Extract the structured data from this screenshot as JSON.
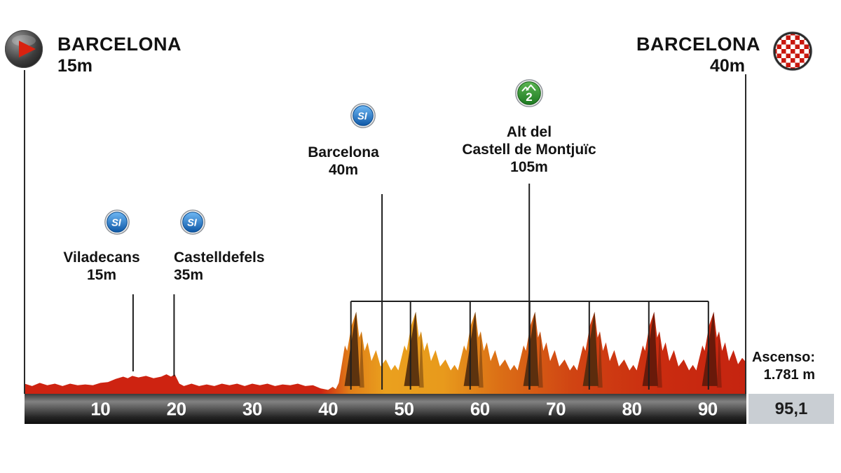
{
  "header": {
    "start": {
      "name": "BARCELONA",
      "altitude": "15m"
    },
    "finish": {
      "name": "BARCELONA",
      "altitude": "40m"
    }
  },
  "waypoints": [
    {
      "type": "sprint",
      "icon": "SI",
      "name": "Viladecans",
      "altitude": "15m",
      "km": 14.3
    },
    {
      "type": "sprint",
      "icon": "SI",
      "name": "Castelldefels",
      "altitude": "35m",
      "km": 19.7
    },
    {
      "type": "sprint",
      "icon": "SI",
      "name": "Barcelona",
      "altitude": "40m",
      "km": 47.1
    },
    {
      "type": "climb",
      "icon": "2",
      "name_lines": [
        "Alt del",
        "Castell de Montjuïc"
      ],
      "altitude": "105m",
      "km": 66.5
    }
  ],
  "footer": {
    "ascent_label": "Ascenso:",
    "ascent_value": "1.781 m",
    "total_distance": "95,1"
  },
  "axis": {
    "ticks": [
      10,
      20,
      30,
      40,
      50,
      60,
      70,
      80,
      90
    ]
  },
  "chart_data": {
    "type": "area",
    "total_km": 95.1,
    "start_elevation_m": 15,
    "finish_elevation_m": 40,
    "max_elevation_m": 105,
    "ascent_total_m": 1781,
    "x_ticks": [
      10,
      20,
      30,
      40,
      50,
      60,
      70,
      80,
      90
    ],
    "peaks_km": [
      43.7,
      51.55,
      59.4,
      67.25,
      75.1,
      82.95,
      90.8
    ],
    "circuit_lap_lines_km": [
      43,
      50.85,
      58.7,
      66.55,
      74.4,
      82.25,
      90.1
    ],
    "gradient_stops": [
      [
        0,
        "#ce2311"
      ],
      [
        0.41,
        "#ce2311"
      ],
      [
        0.45,
        "#e07d18"
      ],
      [
        0.5,
        "#eaa01e"
      ],
      [
        0.58,
        "#e89a1c"
      ],
      [
        0.66,
        "#db6e16"
      ],
      [
        0.76,
        "#d04413"
      ],
      [
        0.88,
        "#ca2c10"
      ],
      [
        1,
        "#c52410"
      ]
    ],
    "colors": {
      "peak_dark": "#4f2a0d",
      "peak_maroon": "#5e180a",
      "bracket": "#1e1e1e",
      "marker_line": "#2a2a2a"
    },
    "profile": [
      [
        0,
        13
      ],
      [
        1,
        10
      ],
      [
        2,
        14
      ],
      [
        3,
        11
      ],
      [
        4,
        13
      ],
      [
        5,
        10
      ],
      [
        6,
        13
      ],
      [
        7,
        11
      ],
      [
        8,
        12
      ],
      [
        9,
        11
      ],
      [
        10,
        14
      ],
      [
        11,
        15
      ],
      [
        12,
        19
      ],
      [
        13,
        22
      ],
      [
        13.6,
        20
      ],
      [
        14.2,
        23
      ],
      [
        15,
        21
      ],
      [
        16,
        23
      ],
      [
        17,
        20
      ],
      [
        18,
        22
      ],
      [
        18.7,
        25
      ],
      [
        19.3,
        22
      ],
      [
        19.8,
        25
      ],
      [
        20.4,
        13
      ],
      [
        21,
        10
      ],
      [
        22,
        13
      ],
      [
        23,
        10
      ],
      [
        24,
        12
      ],
      [
        25,
        10
      ],
      [
        26,
        13
      ],
      [
        27,
        11
      ],
      [
        28,
        13
      ],
      [
        29,
        10
      ],
      [
        30,
        13
      ],
      [
        31,
        11
      ],
      [
        32,
        13
      ],
      [
        33,
        10
      ],
      [
        34,
        12
      ],
      [
        35,
        11
      ],
      [
        36,
        13
      ],
      [
        37,
        10
      ],
      [
        38,
        11
      ],
      [
        39,
        7
      ],
      [
        40,
        5
      ],
      [
        40.6,
        9
      ],
      [
        41,
        6
      ],
      [
        41.4,
        14
      ],
      [
        42.2,
        62
      ],
      [
        42.5,
        55
      ],
      [
        43.1,
        88
      ],
      [
        43.7,
        105
      ],
      [
        44.1,
        72
      ],
      [
        44.4,
        80
      ],
      [
        44.8,
        55
      ],
      [
        45.2,
        66
      ],
      [
        45.7,
        42
      ],
      [
        46.3,
        56
      ],
      [
        46.9,
        35
      ],
      [
        47.6,
        44
      ],
      [
        48.3,
        30
      ],
      [
        48.8,
        37
      ],
      [
        49.25,
        30
      ],
      [
        50.05,
        62
      ],
      [
        50.35,
        55
      ],
      [
        50.95,
        88
      ],
      [
        51.55,
        105
      ],
      [
        51.95,
        72
      ],
      [
        52.25,
        80
      ],
      [
        52.65,
        55
      ],
      [
        53.05,
        66
      ],
      [
        53.55,
        42
      ],
      [
        54.15,
        56
      ],
      [
        54.75,
        35
      ],
      [
        55.45,
        44
      ],
      [
        56.15,
        30
      ],
      [
        56.65,
        37
      ],
      [
        57.1,
        30
      ],
      [
        57.9,
        62
      ],
      [
        58.2,
        55
      ],
      [
        58.8,
        88
      ],
      [
        59.4,
        105
      ],
      [
        59.8,
        72
      ],
      [
        60.1,
        80
      ],
      [
        60.5,
        55
      ],
      [
        60.9,
        66
      ],
      [
        61.4,
        42
      ],
      [
        62,
        56
      ],
      [
        62.6,
        35
      ],
      [
        63.3,
        44
      ],
      [
        64,
        30
      ],
      [
        64.5,
        37
      ],
      [
        64.95,
        30
      ],
      [
        65.75,
        62
      ],
      [
        66.05,
        55
      ],
      [
        66.65,
        88
      ],
      [
        67.25,
        105
      ],
      [
        67.65,
        72
      ],
      [
        67.95,
        80
      ],
      [
        68.35,
        55
      ],
      [
        68.75,
        66
      ],
      [
        69.25,
        42
      ],
      [
        69.85,
        56
      ],
      [
        70.45,
        35
      ],
      [
        71.15,
        44
      ],
      [
        71.85,
        30
      ],
      [
        72.35,
        37
      ],
      [
        72.8,
        30
      ],
      [
        73.6,
        62
      ],
      [
        73.9,
        55
      ],
      [
        74.5,
        88
      ],
      [
        75.1,
        105
      ],
      [
        75.5,
        72
      ],
      [
        75.8,
        80
      ],
      [
        76.2,
        55
      ],
      [
        76.6,
        66
      ],
      [
        77.1,
        42
      ],
      [
        77.7,
        56
      ],
      [
        78.3,
        35
      ],
      [
        79,
        44
      ],
      [
        79.7,
        30
      ],
      [
        80.2,
        37
      ],
      [
        80.65,
        30
      ],
      [
        81.45,
        62
      ],
      [
        81.75,
        55
      ],
      [
        82.35,
        88
      ],
      [
        82.95,
        105
      ],
      [
        83.35,
        72
      ],
      [
        83.65,
        80
      ],
      [
        84.05,
        55
      ],
      [
        84.45,
        66
      ],
      [
        84.95,
        42
      ],
      [
        85.55,
        56
      ],
      [
        86.15,
        35
      ],
      [
        86.85,
        44
      ],
      [
        87.55,
        30
      ],
      [
        88.05,
        37
      ],
      [
        88.5,
        30
      ],
      [
        89.3,
        62
      ],
      [
        89.6,
        55
      ],
      [
        90.2,
        88
      ],
      [
        90.8,
        105
      ],
      [
        91.2,
        72
      ],
      [
        91.5,
        80
      ],
      [
        91.9,
        55
      ],
      [
        92.3,
        66
      ],
      [
        92.8,
        42
      ],
      [
        93.4,
        56
      ],
      [
        94,
        38
      ],
      [
        94.55,
        46
      ],
      [
        95.1,
        40
      ]
    ]
  }
}
